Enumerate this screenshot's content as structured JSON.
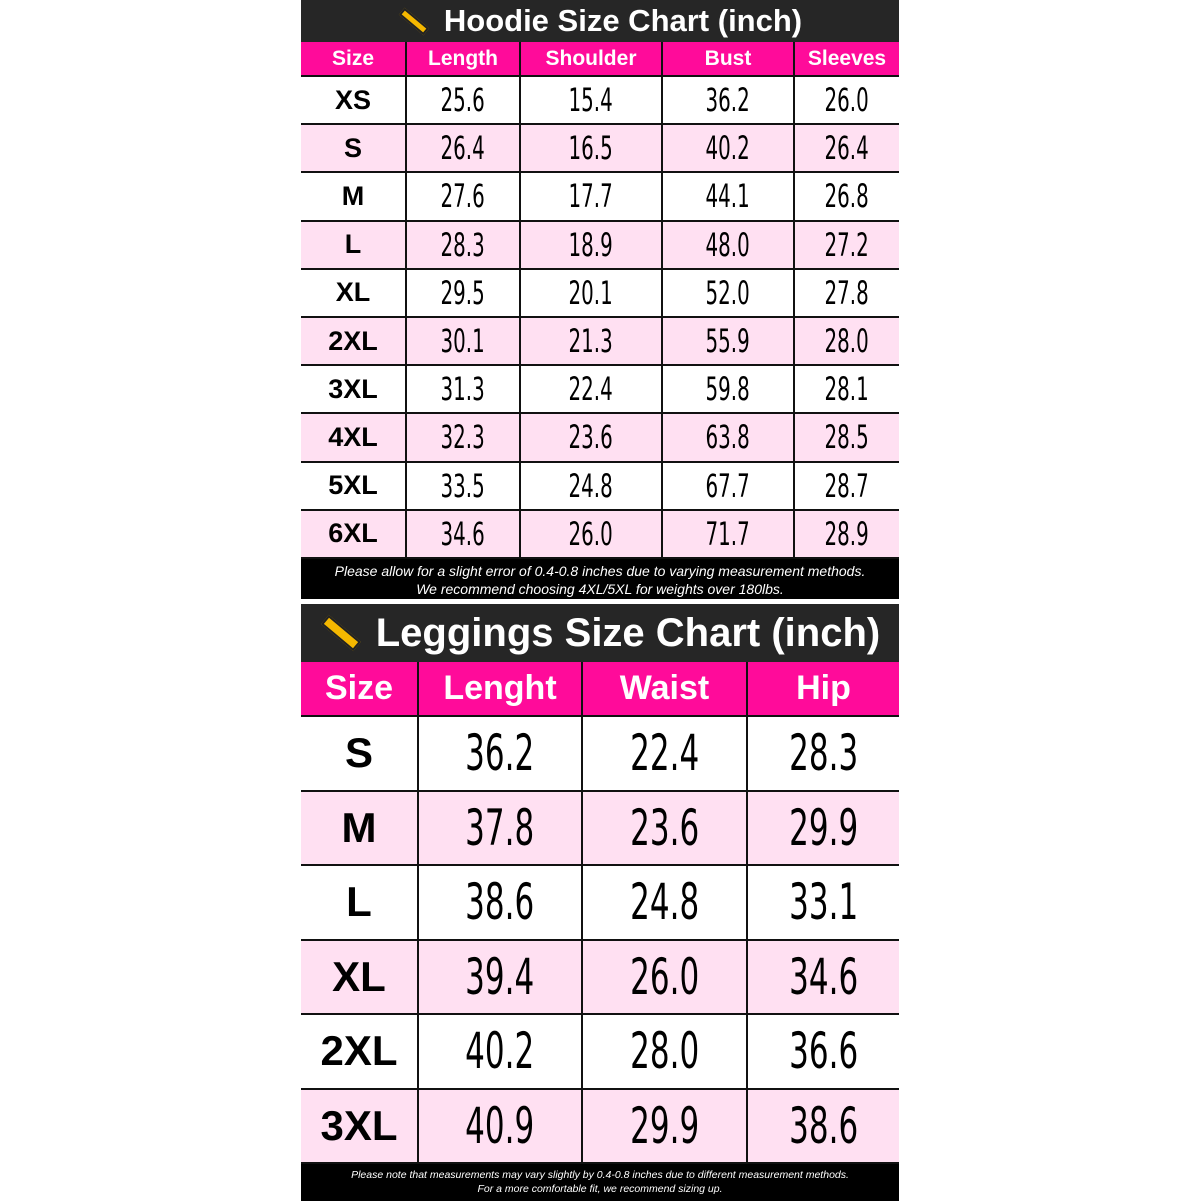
{
  "hoodie": {
    "title": "Hoodie Size Chart (inch)",
    "icon": "ruler-icon",
    "headers": [
      "Size",
      "Length",
      "Shoulder",
      "Bust",
      "Sleeves"
    ],
    "rows": [
      [
        "XS",
        "25.6",
        "15.4",
        "36.2",
        "26.0"
      ],
      [
        "S",
        "26.4",
        "16.5",
        "40.2",
        "26.4"
      ],
      [
        "M",
        "27.6",
        "17.7",
        "44.1",
        "26.8"
      ],
      [
        "L",
        "28.3",
        "18.9",
        "48.0",
        "27.2"
      ],
      [
        "XL",
        "29.5",
        "20.1",
        "52.0",
        "27.8"
      ],
      [
        "2XL",
        "30.1",
        "21.3",
        "55.9",
        "28.0"
      ],
      [
        "3XL",
        "31.3",
        "22.4",
        "59.8",
        "28.1"
      ],
      [
        "4XL",
        "32.3",
        "23.6",
        "63.8",
        "28.5"
      ],
      [
        "5XL",
        "33.5",
        "24.8",
        "67.7",
        "28.7"
      ],
      [
        "6XL",
        "34.6",
        "26.0",
        "71.7",
        "28.9"
      ]
    ],
    "note1": "Please allow for a slight error of 0.4-0.8 inches due to varying measurement methods.",
    "note2": "We recommend choosing 4XL/5XL for weights over 180lbs."
  },
  "leggings": {
    "title": "Leggings Size Chart (inch)",
    "icon": "ruler-icon",
    "headers": [
      "Size",
      "Lenght",
      "Waist",
      "Hip"
    ],
    "rows": [
      [
        "S",
        "36.2",
        "22.4",
        "28.3"
      ],
      [
        "M",
        "37.8",
        "23.6",
        "29.9"
      ],
      [
        "L",
        "38.6",
        "24.8",
        "33.1"
      ],
      [
        "XL",
        "39.4",
        "26.0",
        "34.6"
      ],
      [
        "2XL",
        "40.2",
        "28.0",
        "36.6"
      ],
      [
        "3XL",
        "40.9",
        "29.9",
        "38.6"
      ]
    ],
    "note1": "Please note that measurements may vary slightly by 0.4-0.8 inches due to different measurement methods.",
    "note2": "For a more comfortable fit, we recommend sizing up."
  },
  "colors": {
    "header": "#ff0b9a",
    "alt_row": "#ffe0f2",
    "title_bg": "#262626"
  }
}
